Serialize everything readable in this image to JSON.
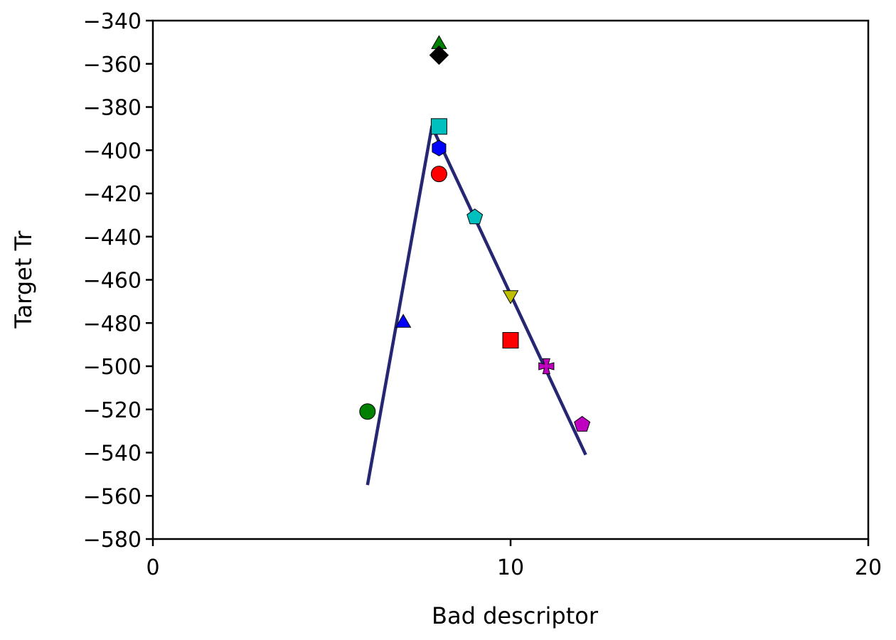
{
  "chart_data": {
    "type": "scatter",
    "xlabel": "Bad descriptor",
    "ylabel": "Target Tr",
    "xlim": [
      0,
      20
    ],
    "ylim": [
      -580,
      -340
    ],
    "x_ticks": [
      0,
      10,
      20
    ],
    "y_ticks": [
      -340,
      -360,
      -380,
      -400,
      -420,
      -440,
      -460,
      -480,
      -500,
      -520,
      -540,
      -560,
      -580
    ],
    "x_tick_labels": [
      "0",
      "10",
      "20"
    ],
    "y_tick_labels": [
      "−340",
      "−360",
      "−380",
      "−400",
      "−420",
      "−440",
      "−460",
      "−480",
      "−500",
      "−520",
      "−540",
      "−560",
      "−580"
    ],
    "grid": false,
    "points": [
      {
        "x": 6,
        "y": -521,
        "marker": "circle",
        "color": "#008000"
      },
      {
        "x": 7,
        "y": -480,
        "marker": "triangle-up",
        "color": "#0000ff"
      },
      {
        "x": 8,
        "y": -351,
        "marker": "triangle-up",
        "color": "#008000"
      },
      {
        "x": 8,
        "y": -356,
        "marker": "diamond",
        "color": "#000000"
      },
      {
        "x": 8,
        "y": -389,
        "marker": "square",
        "color": "#00bfbf"
      },
      {
        "x": 8,
        "y": -399,
        "marker": "hexagon",
        "color": "#0000ff"
      },
      {
        "x": 8,
        "y": -411,
        "marker": "circle",
        "color": "#ff0000"
      },
      {
        "x": 9,
        "y": -431,
        "marker": "pentagon",
        "color": "#00bfbf"
      },
      {
        "x": 10,
        "y": -467,
        "marker": "triangle-down",
        "color": "#bfbf00"
      },
      {
        "x": 10,
        "y": -488,
        "marker": "square",
        "color": "#ff0000"
      },
      {
        "x": 11,
        "y": -500,
        "marker": "x-filled",
        "color": "#bf00bf"
      },
      {
        "x": 12,
        "y": -527,
        "marker": "pentagon",
        "color": "#bf00bf"
      }
    ],
    "fit_line": {
      "color": "#262673",
      "points": [
        [
          6,
          -555
        ],
        [
          7.8,
          -389
        ],
        [
          12.1,
          -541
        ]
      ]
    }
  }
}
